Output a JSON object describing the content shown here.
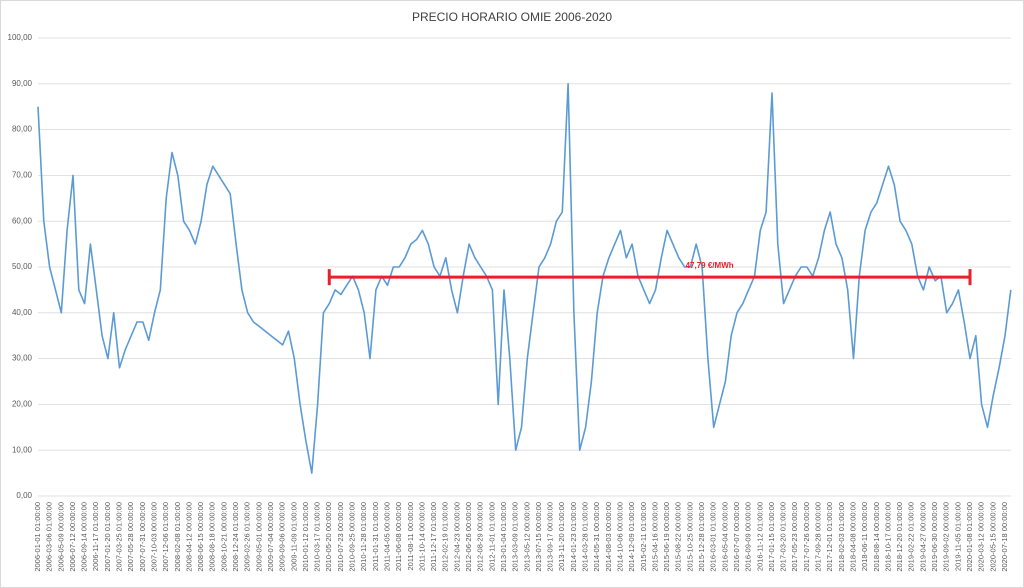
{
  "chart_data": {
    "type": "line",
    "title": "PRECIO HORARIO OMIE 2006-2020",
    "categories": [
      "2006-01-01 01:00:00",
      null,
      "2006-03-06 01:00:00",
      null,
      "2006-05-09 00:00:00",
      null,
      "2006-07-12 00:00:00",
      null,
      "2006-09-14 00:00:00",
      null,
      "2006-11-17 01:00:00",
      null,
      "2007-01-20 01:00:00",
      null,
      "2007-03-25 01:00:00",
      null,
      "2007-05-28 00:00:00",
      null,
      "2007-07-31 00:00:00",
      null,
      "2007-10-03 00:00:00",
      null,
      "2007-12-06 01:00:00",
      null,
      "2008-02-08 01:00:00",
      null,
      "2008-04-12 00:00:00",
      null,
      "2008-06-15 00:00:00",
      null,
      "2008-08-18 00:00:00",
      null,
      "2008-10-21 00:00:00",
      null,
      "2008-12-24 01:00:00",
      null,
      "2009-02-26 01:00:00",
      null,
      "2009-05-01 00:00:00",
      null,
      "2009-07-04 00:00:00",
      null,
      "2009-09-06 00:00:00",
      null,
      "2009-11-09 01:00:00",
      null,
      "2010-01-12 01:00:00",
      null,
      "2010-03-17 01:00:00",
      null,
      "2010-05-20 00:00:00",
      null,
      "2010-07-23 00:00:00",
      null,
      "2010-09-25 00:00:00",
      null,
      "2010-11-28 01:00:00",
      null,
      "2011-01-31 01:00:00",
      null,
      "2011-04-05 00:00:00",
      null,
      "2011-06-08 00:00:00",
      null,
      "2011-08-11 00:00:00",
      null,
      "2011-10-14 00:00:00",
      null,
      "2011-12-17 01:00:00",
      null,
      "2012-02-19 01:00:00",
      null,
      "2012-04-23 00:00:00",
      null,
      "2012-06-26 00:00:00",
      null,
      "2012-08-29 00:00:00",
      null,
      "2012-11-01 01:00:00",
      null,
      "2013-01-04 01:00:00",
      null,
      "2013-03-09 01:00:00",
      null,
      "2013-05-12 00:00:00",
      null,
      "2013-07-15 00:00:00",
      null,
      "2013-09-17 00:00:00",
      null,
      "2013-11-20 01:00:00",
      null,
      "2014-01-23 01:00:00",
      null,
      "2014-03-28 01:00:00",
      null,
      "2014-05-31 00:00:00",
      null,
      "2014-08-03 00:00:00",
      null,
      "2014-10-06 00:00:00",
      null,
      "2014-12-09 01:00:00",
      null,
      "2015-02-11 01:00:00",
      null,
      "2015-04-16 00:00:00",
      null,
      "2015-06-19 00:00:00",
      null,
      "2015-08-22 00:00:00",
      null,
      "2015-10-25 00:00:00",
      null,
      "2015-12-28 01:00:00",
      null,
      "2016-03-01 01:00:00",
      null,
      "2016-05-04 00:00:00",
      null,
      "2016-07-07 00:00:00",
      null,
      "2016-09-09 00:00:00",
      null,
      "2016-11-12 01:00:00",
      null,
      "2017-01-15 01:00:00",
      null,
      "2017-03-20 01:00:00",
      null,
      "2017-05-23 00:00:00",
      null,
      "2017-07-26 00:00:00",
      null,
      "2017-09-28 00:00:00",
      null,
      "2017-12-01 01:00:00",
      null,
      "2018-02-03 01:00:00",
      null,
      "2018-04-08 00:00:00",
      null,
      "2018-06-11 00:00:00",
      null,
      "2018-08-14 00:00:00",
      null,
      "2018-10-17 00:00:00",
      null,
      "2018-12-20 01:00:00",
      null,
      "2019-02-22 01:00:00",
      null,
      "2019-04-27 00:00:00",
      null,
      "2019-06-30 00:00:00",
      null,
      "2019-09-02 00:00:00",
      null,
      "2019-11-05 01:00:00",
      null,
      "2020-01-08 01:00:00",
      null,
      "2020-03-12 00:00:00",
      null,
      "2020-05-15 00:00:00",
      null,
      "2020-07-18 00:00:00",
      null
    ],
    "values": [
      85,
      60,
      50,
      45,
      40,
      58,
      70,
      45,
      42,
      55,
      45,
      35,
      30,
      40,
      28,
      32,
      35,
      38,
      38,
      34,
      40,
      45,
      65,
      75,
      70,
      60,
      58,
      55,
      60,
      68,
      72,
      70,
      68,
      66,
      55,
      45,
      40,
      38,
      37,
      36,
      35,
      34,
      33,
      36,
      30,
      20,
      12,
      5,
      20,
      40,
      42,
      45,
      44,
      46,
      48,
      45,
      40,
      30,
      45,
      48,
      46,
      50,
      50,
      52,
      55,
      56,
      58,
      55,
      50,
      48,
      52,
      45,
      40,
      48,
      55,
      52,
      50,
      48,
      45,
      20,
      45,
      30,
      10,
      15,
      30,
      40,
      50,
      52,
      55,
      60,
      62,
      90,
      40,
      10,
      15,
      25,
      40,
      48,
      52,
      55,
      58,
      52,
      55,
      48,
      45,
      42,
      45,
      52,
      58,
      55,
      52,
      50,
      50,
      55,
      50,
      30,
      15,
      20,
      25,
      35,
      40,
      42,
      45,
      48,
      58,
      62,
      88,
      55,
      42,
      45,
      48,
      50,
      50,
      48,
      52,
      58,
      62,
      55,
      52,
      45,
      30,
      48,
      58,
      62,
      64,
      68,
      72,
      68,
      60,
      58,
      55,
      48,
      45,
      50,
      47,
      48,
      40,
      42,
      45,
      38,
      30,
      35,
      20,
      15,
      22,
      28,
      35,
      45
    ],
    "color": "#5b9bd5",
    "ylim": [
      0,
      100
    ],
    "yticks": [
      {
        "value": 0,
        "label": "0,00"
      },
      {
        "value": 10,
        "label": "10,00"
      },
      {
        "value": 20,
        "label": "20,00"
      },
      {
        "value": 30,
        "label": "30,00"
      },
      {
        "value": 40,
        "label": "40,00"
      },
      {
        "value": 50,
        "label": "50,00"
      },
      {
        "value": 60,
        "label": "60,00"
      },
      {
        "value": 70,
        "label": "70,00"
      },
      {
        "value": 80,
        "label": "80,00"
      },
      {
        "value": 90,
        "label": "90,00"
      },
      {
        "value": 100,
        "label": "100,00"
      }
    ],
    "grid": true,
    "annotation": {
      "text": "47,79 €/MWh",
      "value": 47.79,
      "start": "2010-05-20 00:00:00",
      "end": "2020-01-08 01:00:00",
      "color": "#e8202a"
    }
  }
}
